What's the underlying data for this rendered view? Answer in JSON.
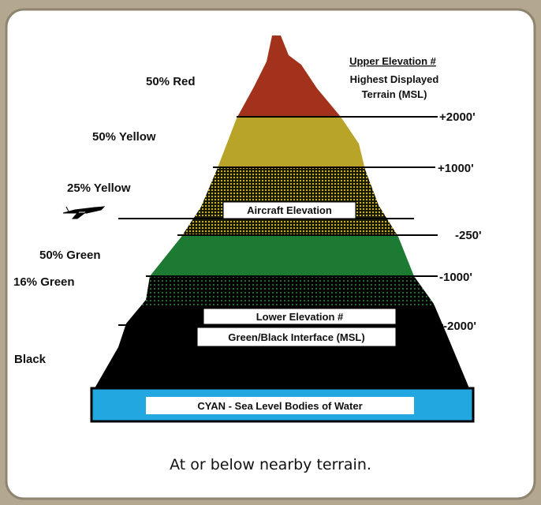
{
  "left_labels": [
    "50% Red",
    "50% Yellow",
    "25% Yellow",
    "50% Green",
    "16% Green",
    "Black"
  ],
  "upper_label": {
    "title": "Upper Elevation #",
    "lines": [
      "Highest Displayed",
      "Terrain (MSL)"
    ]
  },
  "level_labels": [
    "+2000'",
    "+1000'",
    "-250'",
    "-1000'",
    "-2000'"
  ],
  "aircraft_label": "Aircraft Elevation",
  "lower_label": [
    "Lower Elevation #",
    "Green/Black Interface (MSL)"
  ],
  "water_label": "CYAN - Sea Level  Bodies of Water",
  "caption": "At or below nearby terrain."
}
